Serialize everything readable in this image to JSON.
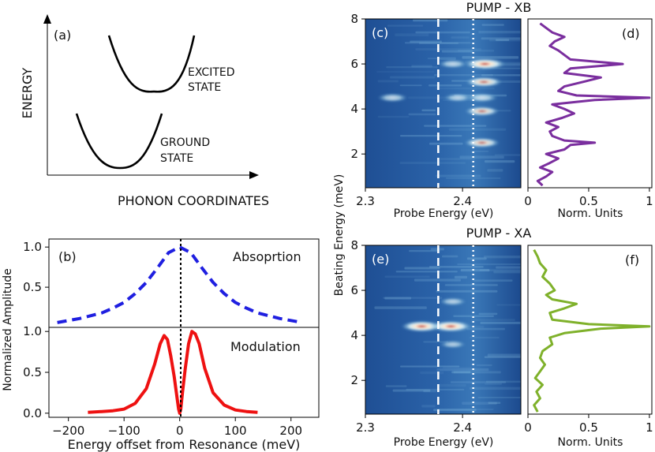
{
  "chart_data": [
    {
      "id": "a",
      "type": "diagram",
      "panel_label": "(a)",
      "ylabel": "ENERGY",
      "xlabel": "PHONON COORDINATES",
      "annotations": [
        {
          "name": "excited",
          "lines": [
            "EXCITED",
            "STATE"
          ]
        },
        {
          "name": "ground",
          "lines": [
            "GROUND",
            "STATE"
          ]
        }
      ]
    },
    {
      "id": "b",
      "type": "line",
      "panel_label": "(b)",
      "xlabel": "Energy offset from Resonance (meV)",
      "ylabel": "Normalized Amplitude",
      "xlim": [
        -235,
        250
      ],
      "xticks": [
        "−200",
        "−100",
        "0",
        "100",
        "200"
      ],
      "xtick_values": [
        -200,
        -100,
        0,
        100,
        200
      ],
      "subplots": [
        {
          "name": "Absoprtion",
          "ylim": [
            0,
            1.1
          ],
          "yticks": [
            "0.5",
            "1.0"
          ],
          "ytick_values": [
            0.5,
            1.0
          ],
          "series": [
            {
              "name": "Absoprtion",
              "color": "#1f1fe0",
              "style": "dashed",
              "x": [
                -220,
                -180,
                -140,
                -120,
                -100,
                -80,
                -60,
                -40,
                -20,
                0,
                20,
                40,
                60,
                80,
                100,
                120,
                140,
                180,
                220
              ],
              "y": [
                0.06,
                0.11,
                0.18,
                0.24,
                0.31,
                0.42,
                0.56,
                0.74,
                0.93,
                1.0,
                0.93,
                0.74,
                0.56,
                0.42,
                0.31,
                0.24,
                0.18,
                0.11,
                0.06
              ]
            }
          ]
        },
        {
          "name": "Modulation",
          "ylim": [
            -0.05,
            1.05
          ],
          "yticks": [
            "0.0",
            "0.5",
            "1.0"
          ],
          "ytick_values": [
            0.0,
            0.5,
            1.0
          ],
          "series": [
            {
              "name": "Modulation",
              "color": "#ee1111",
              "style": "solid",
              "x": [
                -165,
                -140,
                -120,
                -100,
                -80,
                -60,
                -45,
                -35,
                -28,
                -22,
                -16,
                -10,
                -5,
                -2,
                0,
                2,
                5,
                10,
                16,
                22,
                28,
                35,
                45,
                60,
                80,
                100,
                120,
                140
              ],
              "y": [
                0.01,
                0.02,
                0.03,
                0.05,
                0.12,
                0.3,
                0.6,
                0.85,
                0.95,
                0.9,
                0.7,
                0.45,
                0.2,
                0.05,
                0.0,
                0.05,
                0.25,
                0.55,
                0.85,
                1.0,
                0.97,
                0.85,
                0.55,
                0.25,
                0.1,
                0.04,
                0.02,
                0.01
              ]
            }
          ]
        }
      ],
      "legend": [
        "Absoprtion",
        "Modulation"
      ],
      "marker_line_x": 0
    },
    {
      "id": "c",
      "type": "heatmap",
      "panel_label": "(c)",
      "title": "PUMP - XB",
      "xlabel": "Probe Energy (eV)",
      "ylabel": "Beating Energy (meV)",
      "xlim": [
        2.3,
        2.46
      ],
      "ylim": [
        0.5,
        8
      ],
      "xticks": [
        "2.3",
        "2.4"
      ],
      "xtick_values": [
        2.3,
        2.4
      ],
      "yticks": [
        "2",
        "4",
        "6",
        "8"
      ],
      "ytick_values": [
        2,
        4,
        6,
        8
      ],
      "dashed_line_x": 2.375,
      "dotted_line_x": 2.411,
      "hotspots": [
        {
          "x": 2.423,
          "y": 6.0,
          "level": 1.0
        },
        {
          "x": 2.422,
          "y": 5.2,
          "level": 0.8
        },
        {
          "x": 2.42,
          "y": 4.5,
          "level": 0.55
        },
        {
          "x": 2.42,
          "y": 3.9,
          "level": 0.7
        },
        {
          "x": 2.42,
          "y": 2.5,
          "level": 0.75
        },
        {
          "x": 2.328,
          "y": 4.5,
          "level": 0.5
        },
        {
          "x": 2.39,
          "y": 6.0,
          "level": 0.45
        },
        {
          "x": 2.395,
          "y": 4.5,
          "level": 0.4
        }
      ]
    },
    {
      "id": "d",
      "type": "line",
      "panel_label": "(d)",
      "xlabel": "Norm. Units",
      "xlim": [
        0,
        1.02
      ],
      "ylim": [
        0.5,
        8
      ],
      "xticks": [
        "0",
        "0.5",
        "1"
      ],
      "xtick_values": [
        0,
        0.5,
        1
      ],
      "series": [
        {
          "name": "XB spectrum",
          "color": "#7a2e9e",
          "y": [
            0.6,
            0.8,
            1.0,
            1.2,
            1.4,
            1.6,
            1.8,
            2.0,
            2.2,
            2.4,
            2.5,
            2.6,
            2.8,
            3.0,
            3.2,
            3.4,
            3.6,
            3.8,
            4.0,
            4.2,
            4.4,
            4.5,
            4.6,
            4.8,
            5.0,
            5.2,
            5.4,
            5.6,
            5.8,
            6.0,
            6.2,
            6.4,
            6.6,
            6.8,
            7.0,
            7.2,
            7.4,
            7.6,
            7.8
          ],
          "x": [
            0.12,
            0.08,
            0.15,
            0.2,
            0.1,
            0.18,
            0.25,
            0.15,
            0.3,
            0.35,
            0.55,
            0.3,
            0.2,
            0.18,
            0.25,
            0.15,
            0.28,
            0.38,
            0.3,
            0.2,
            0.55,
            1.0,
            0.4,
            0.25,
            0.3,
            0.45,
            0.6,
            0.3,
            0.35,
            0.78,
            0.35,
            0.3,
            0.25,
            0.18,
            0.22,
            0.3,
            0.2,
            0.15,
            0.1
          ]
        }
      ]
    },
    {
      "id": "e",
      "type": "heatmap",
      "panel_label": "(e)",
      "title": "PUMP - XA",
      "xlabel": "Probe Energy (eV)",
      "ylabel": "Beating Energy (meV)",
      "xlim": [
        2.3,
        2.46
      ],
      "ylim": [
        0.5,
        8
      ],
      "xticks": [
        "2.3",
        "2.4"
      ],
      "xtick_values": [
        2.3,
        2.4
      ],
      "yticks": [
        "2",
        "4",
        "6",
        "8"
      ],
      "ytick_values": [
        2,
        4,
        6,
        8
      ],
      "dashed_line_x": 2.375,
      "dotted_line_x": 2.411,
      "hotspots": [
        {
          "x": 2.358,
          "y": 4.4,
          "level": 1.0
        },
        {
          "x": 2.388,
          "y": 4.4,
          "level": 1.0
        },
        {
          "x": 2.39,
          "y": 5.5,
          "level": 0.35
        },
        {
          "x": 2.39,
          "y": 3.6,
          "level": 0.3
        }
      ]
    },
    {
      "id": "f",
      "type": "line",
      "panel_label": "(f)",
      "xlabel": "Norm. Units",
      "xlim": [
        0,
        1.02
      ],
      "ylim": [
        0.5,
        8
      ],
      "xticks": [
        "0",
        "0.5",
        "1"
      ],
      "xtick_values": [
        0,
        0.5,
        1
      ],
      "series": [
        {
          "name": "XA spectrum",
          "color": "#7fb12b",
          "y": [
            0.6,
            0.9,
            1.2,
            1.5,
            1.8,
            2.1,
            2.4,
            2.7,
            3.0,
            3.3,
            3.6,
            3.9,
            4.1,
            4.3,
            4.4,
            4.5,
            4.7,
            5.0,
            5.2,
            5.4,
            5.6,
            5.8,
            6.0,
            6.3,
            6.6,
            6.9,
            7.2,
            7.5,
            7.8
          ],
          "x": [
            0.08,
            0.05,
            0.1,
            0.07,
            0.12,
            0.06,
            0.1,
            0.14,
            0.1,
            0.12,
            0.2,
            0.18,
            0.3,
            0.6,
            1.0,
            0.5,
            0.2,
            0.18,
            0.3,
            0.4,
            0.2,
            0.15,
            0.22,
            0.18,
            0.12,
            0.15,
            0.1,
            0.08,
            0.05
          ]
        }
      ]
    }
  ]
}
